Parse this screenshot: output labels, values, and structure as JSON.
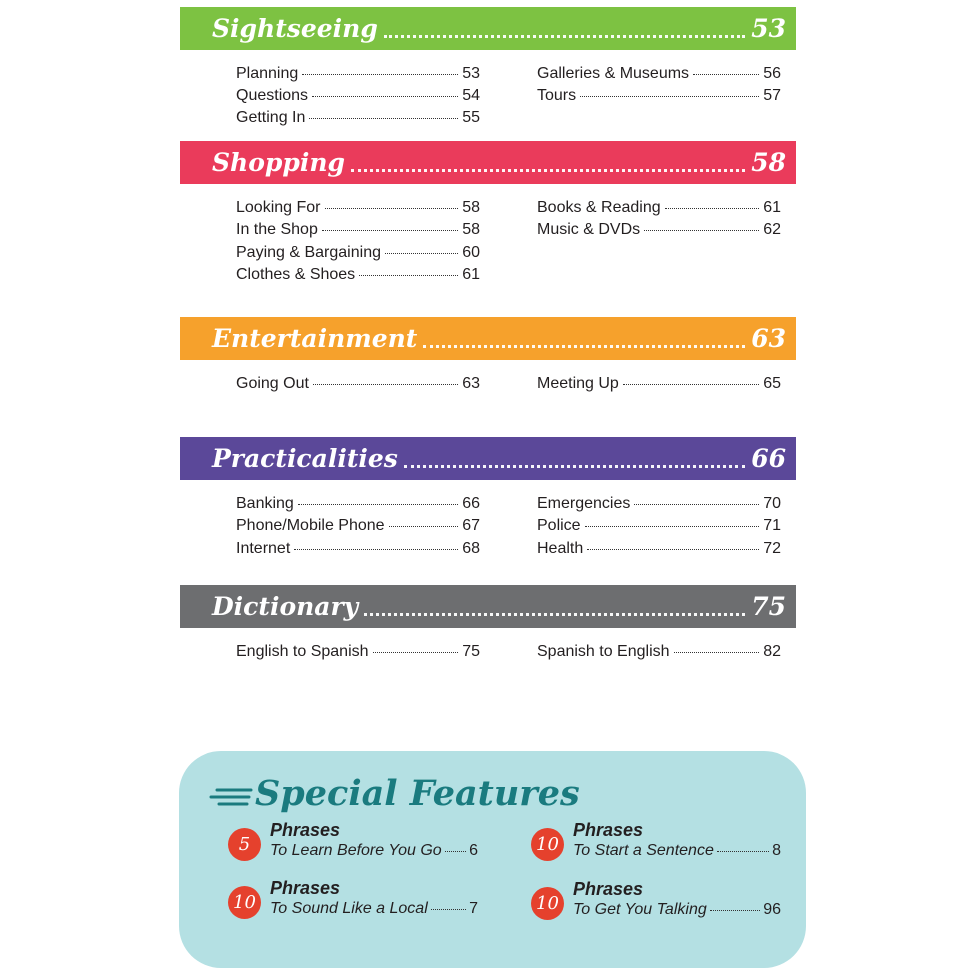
{
  "sections": [
    {
      "title": "Sightseeing",
      "page": "53",
      "color": "#7dc242",
      "left": [
        {
          "label": "Planning",
          "page": "53"
        },
        {
          "label": "Questions",
          "page": "54"
        },
        {
          "label": "Getting In",
          "page": "55"
        }
      ],
      "right": [
        {
          "label": "Galleries & Museums",
          "page": "56"
        },
        {
          "label": "Tours",
          "page": "57"
        }
      ]
    },
    {
      "title": "Shopping",
      "page": "58",
      "color": "#ea3b5b",
      "left": [
        {
          "label": "Looking For",
          "page": "58"
        },
        {
          "label": "In the Shop",
          "page": "58"
        },
        {
          "label": "Paying & Bargaining",
          "page": "60"
        },
        {
          "label": "Clothes & Shoes",
          "page": "61"
        }
      ],
      "right": [
        {
          "label": "Books & Reading",
          "page": "61"
        },
        {
          "label": "Music & DVDs",
          "page": "62"
        }
      ]
    },
    {
      "title": "Entertainment",
      "page": "63",
      "color": "#f6a12c",
      "left": [
        {
          "label": "Going Out",
          "page": "63"
        }
      ],
      "right": [
        {
          "label": "Meeting Up",
          "page": "65"
        }
      ]
    },
    {
      "title": "Practicalities",
      "page": "66",
      "color": "#5b4899",
      "left": [
        {
          "label": "Banking",
          "page": "66"
        },
        {
          "label": "Phone/Mobile Phone",
          "page": "67"
        },
        {
          "label": "Internet",
          "page": "68"
        }
      ],
      "right": [
        {
          "label": "Emergencies",
          "page": "70"
        },
        {
          "label": "Police",
          "page": "71"
        },
        {
          "label": "Health",
          "page": "72"
        }
      ]
    },
    {
      "title": "Dictionary",
      "page": "75",
      "color": "#6d6e70",
      "left": [
        {
          "label": "English to Spanish",
          "page": "75"
        }
      ],
      "right": [
        {
          "label": "Spanish to English",
          "page": "82"
        }
      ]
    }
  ],
  "special_features": {
    "title": "Special Features",
    "items": [
      {
        "count": "5",
        "heading": "Phrases",
        "sub": "To Learn Before You Go",
        "page": "6"
      },
      {
        "count": "10",
        "heading": "Phrases",
        "sub": "To Start a Sentence",
        "page": "8"
      },
      {
        "count": "10",
        "heading": "Phrases",
        "sub": "To Sound Like a Local",
        "page": "7"
      },
      {
        "count": "10",
        "heading": "Phrases",
        "sub": "To Get You Talking",
        "page": "96"
      }
    ]
  }
}
